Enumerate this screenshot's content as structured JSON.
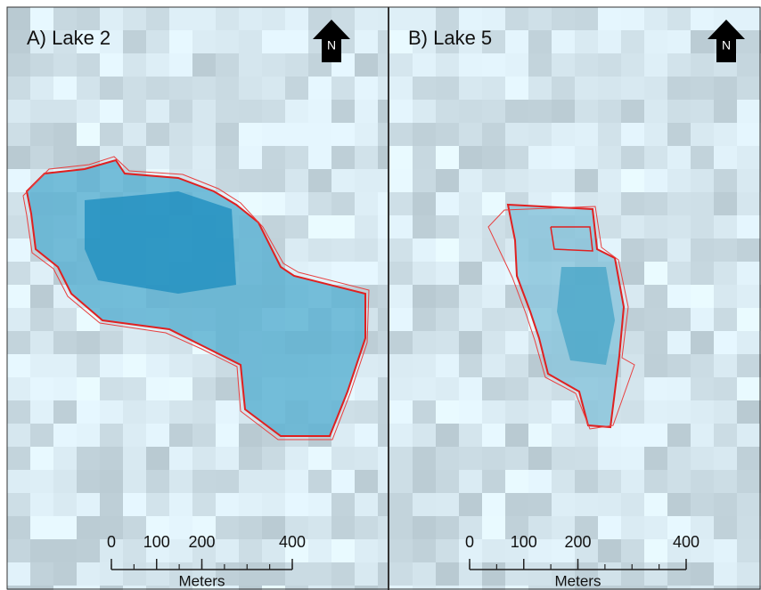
{
  "panels": [
    {
      "title": "A) Lake 2",
      "north": "N",
      "scale_bar": {
        "labels": [
          0,
          100,
          200,
          400
        ],
        "unit": "Meters"
      }
    },
    {
      "title": "B) Lake 5",
      "north": "N",
      "scale_bar": {
        "labels": [
          0,
          100,
          200,
          400
        ],
        "unit": "Meters"
      }
    }
  ]
}
